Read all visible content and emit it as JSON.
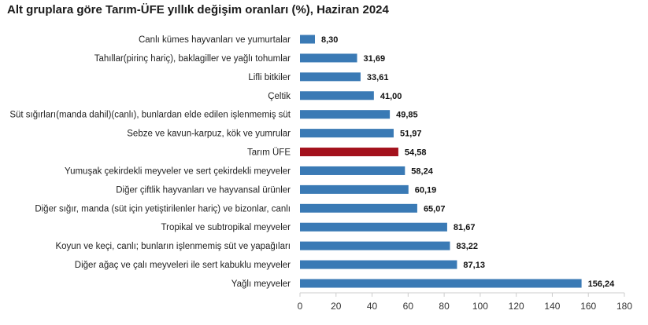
{
  "chart_data": {
    "type": "bar",
    "orientation": "horizontal",
    "title": "Alt gruplara göre Tarım-ÜFE yıllık değişim oranları (%), Haziran 2024",
    "xlabel": "",
    "ylabel": "",
    "categories": [
      "Canlı kümes hayvanları ve yumurtalar",
      "Tahıllar(pirinç hariç), baklagiller ve yağlı tohumlar",
      "Lifli bitkiler",
      "Çeltik",
      "Süt sığırları(manda dahil)(canlı), bunlardan elde edilen işlenmemiş süt",
      "Sebze ve kavun-karpuz, kök ve yumrular",
      "Tarım ÜFE",
      "Yumuşak çekirdekli meyveler ve sert çekirdekli meyveler",
      "Diğer çiftlik hayvanları ve hayvansal ürünler",
      "Diğer sığır, manda (süt için yetiştirilenler hariç) ve bizonlar, canlı",
      "Tropikal ve subtropikal meyveler",
      "Koyun ve keçi, canlı; bunların işlenmemiş süt ve yapağıları",
      "Diğer ağaç ve çalı meyveleri ile sert kabuklu meyveler",
      "Yağlı meyveler"
    ],
    "values": [
      8.3,
      31.69,
      33.61,
      41.0,
      49.85,
      51.97,
      54.58,
      58.24,
      60.19,
      65.07,
      81.67,
      83.22,
      87.13,
      156.24
    ],
    "value_labels": [
      "8,30",
      "31,69",
      "33,61",
      "41,00",
      "49,85",
      "51,97",
      "54,58",
      "58,24",
      "60,19",
      "65,07",
      "81,67",
      "83,22",
      "87,13",
      "156,24"
    ],
    "highlight_category": "Tarım ÜFE",
    "xlim": [
      0,
      180
    ],
    "xticks": [
      0,
      20,
      40,
      60,
      80,
      100,
      120,
      140,
      160,
      180
    ],
    "grid": false,
    "legend": "none",
    "colors": {
      "bar": "#3a7ab5",
      "highlight": "#a3111c",
      "axis": "#cccccc"
    }
  }
}
